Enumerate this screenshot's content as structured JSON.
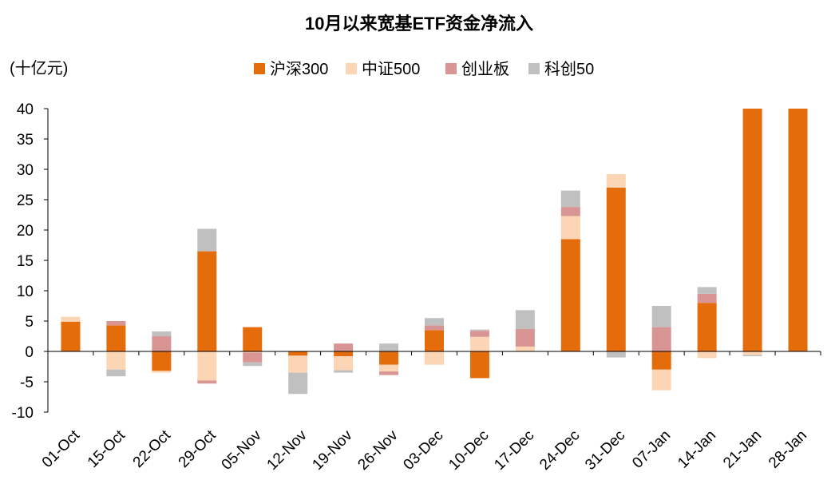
{
  "chart_data": {
    "type": "bar",
    "stacked": true,
    "title": "10月以来宽基ETF资金净流入",
    "unit_label": "(十亿元)",
    "xlabel": "",
    "ylabel": "",
    "ylim": [
      -10,
      40
    ],
    "yticks": [
      40,
      35,
      30,
      25,
      20,
      15,
      10,
      5,
      0,
      -5,
      -10
    ],
    "grid": false,
    "legend_position": "top",
    "categories": [
      "01-Oct",
      "15-Oct",
      "22-Oct",
      "29-Oct",
      "05-Nov",
      "12-Nov",
      "19-Nov",
      "26-Nov",
      "03-Dec",
      "10-Dec",
      "17-Dec",
      "24-Dec",
      "31-Dec",
      "07-Jan",
      "14-Jan",
      "21-Jan",
      "28-Jan"
    ],
    "series": [
      {
        "name": "沪深300",
        "color": "#E46C0A",
        "values": [
          4.9,
          4.3,
          -3.2,
          16.5,
          4.0,
          -0.7,
          -0.8,
          -2.2,
          3.5,
          -4.4,
          0.0,
          18.5,
          27.0,
          -3.0,
          8.0,
          40.0,
          40.0
        ]
      },
      {
        "name": "中证500",
        "color": "#FCD5B5",
        "values": [
          0.8,
          -3.0,
          -0.3,
          -4.8,
          -0.2,
          -2.8,
          -2.3,
          -1.1,
          -2.2,
          2.4,
          0.8,
          3.8,
          2.2,
          -3.4,
          -1.1,
          -0.6,
          0.0
        ]
      },
      {
        "name": "创业板",
        "color": "#D99594",
        "values": [
          0.0,
          0.7,
          2.5,
          -0.5,
          -1.6,
          0.0,
          1.3,
          -0.6,
          0.8,
          1.0,
          2.9,
          1.5,
          0.0,
          4.0,
          1.5,
          0.0,
          0.0
        ]
      },
      {
        "name": "科创50",
        "color": "#C0C0C0",
        "values": [
          0.0,
          -1.1,
          0.8,
          3.7,
          -0.6,
          -3.5,
          -0.4,
          1.3,
          1.2,
          0.2,
          3.1,
          2.7,
          -1.0,
          3.5,
          1.1,
          -0.2,
          0.0
        ]
      }
    ]
  }
}
